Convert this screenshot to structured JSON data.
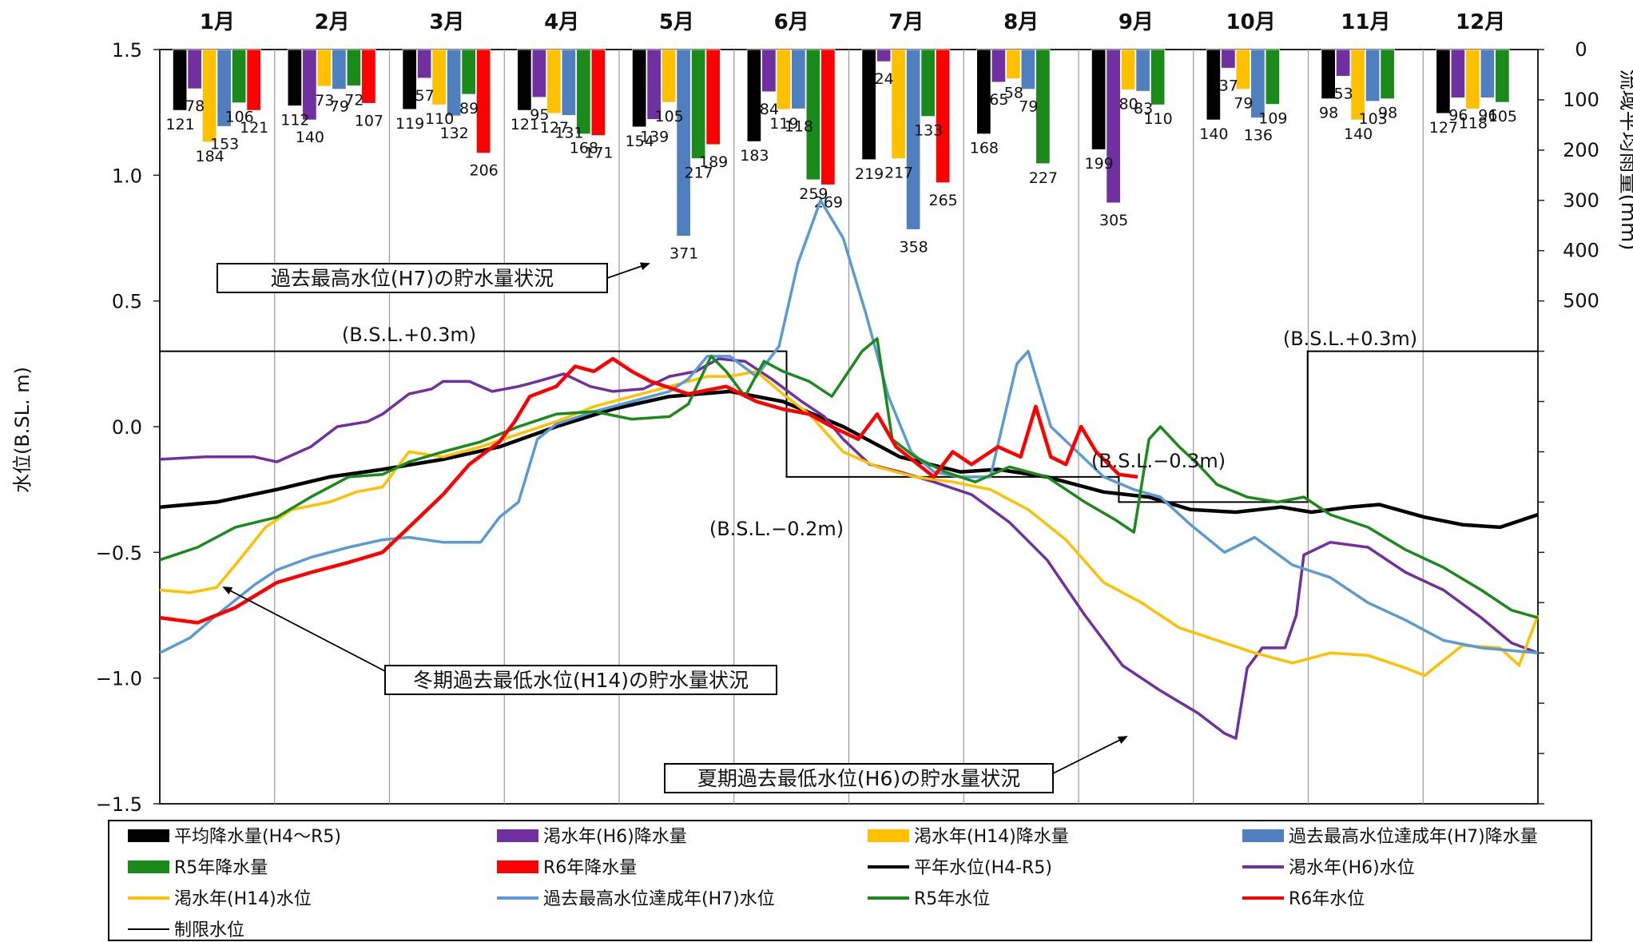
{
  "chart_data": {
    "type": "bar+line",
    "months": [
      "1月",
      "2月",
      "3月",
      "4月",
      "5月",
      "6月",
      "7月",
      "8月",
      "9月",
      "10月",
      "11月",
      "12月"
    ],
    "left_axis": {
      "label": "水位(B.SL. m)",
      "range": [
        -1.5,
        1.5
      ],
      "ticks": [
        "1.5",
        "1.0",
        "0.5",
        "0.0",
        "−0.5",
        "−1.0",
        "−1.5"
      ]
    },
    "right_axis": {
      "label": "流域平均雨量(mm)",
      "range": [
        0,
        1500
      ],
      "inverted": true,
      "ticks": [
        "0",
        "100",
        "200",
        "300",
        "400",
        "500"
      ]
    },
    "grid": "vertical month lines",
    "bar_series": [
      {
        "name": "平均降水量(H4〜R5)",
        "color": "#000000",
        "values": [
          121,
          112,
          119,
          121,
          154,
          183,
          219,
          168,
          199,
          140,
          98,
          127
        ]
      },
      {
        "name": "渇水年(H6)降水量",
        "color": "#7030a0",
        "values": [
          78,
          140,
          57,
          95,
          139,
          84,
          24,
          65,
          305,
          37,
          53,
          96
        ]
      },
      {
        "name": "渇水年(H14)降水量",
        "color": "#ffc000",
        "values": [
          184,
          73,
          110,
          127,
          105,
          119,
          217,
          58,
          80,
          79,
          140,
          118
        ]
      },
      {
        "name": "過去最高水位達成年(H7)降水量",
        "color": "#4f7fbf",
        "values": [
          153,
          79,
          132,
          131,
          371,
          118,
          358,
          79,
          83,
          136,
          103,
          96
        ]
      },
      {
        "name": "R5年降水量",
        "color": "#1a8a1a",
        "values": [
          106,
          72,
          89,
          168,
          217,
          259,
          133,
          227,
          110,
          109,
          98,
          105
        ]
      },
      {
        "name": "R6年降水量",
        "color": "#ff0000",
        "values": [
          121,
          107,
          206,
          171,
          189,
          269,
          265,
          null,
          null,
          null,
          null,
          null
        ]
      }
    ],
    "bar_label_positions": [
      [
        0,
        0,
        78,
        216,
        175,
        1181,
        "78"
      ],
      [
        0,
        0,
        0,
        0,
        0,
        0,
        ""
      ]
    ],
    "line_series": [
      {
        "name": "平年水位(H4-R5)",
        "color": "#000000",
        "width": 4.5,
        "points": [
          [
            0,
            -0.32
          ],
          [
            15,
            -0.3
          ],
          [
            31,
            -0.25
          ],
          [
            45,
            -0.2
          ],
          [
            59,
            -0.17
          ],
          [
            75,
            -0.13
          ],
          [
            90,
            -0.08
          ],
          [
            105,
            0.0
          ],
          [
            120,
            0.07
          ],
          [
            135,
            0.12
          ],
          [
            151,
            0.14
          ],
          [
            165,
            0.1
          ],
          [
            181,
            0.0
          ],
          [
            196,
            -0.12
          ],
          [
            212,
            -0.18
          ],
          [
            222,
            -0.17
          ],
          [
            235,
            -0.2
          ],
          [
            250,
            -0.26
          ],
          [
            262,
            -0.28
          ],
          [
            273,
            -0.33
          ],
          [
            285,
            -0.34
          ],
          [
            297,
            -0.32
          ],
          [
            305,
            -0.34
          ],
          [
            315,
            -0.32
          ],
          [
            323,
            -0.31
          ],
          [
            335,
            -0.36
          ],
          [
            345,
            -0.39
          ],
          [
            355,
            -0.4
          ],
          [
            365,
            -0.35
          ]
        ]
      },
      {
        "name": "渇水年(H6)水位",
        "color": "#7030a0",
        "width": 3.5,
        "points": [
          [
            0,
            -0.13
          ],
          [
            12,
            -0.12
          ],
          [
            25,
            -0.12
          ],
          [
            31,
            -0.14
          ],
          [
            40,
            -0.08
          ],
          [
            47,
            0.0
          ],
          [
            55,
            0.02
          ],
          [
            59,
            0.05
          ],
          [
            66,
            0.13
          ],
          [
            72,
            0.15
          ],
          [
            75,
            0.18
          ],
          [
            82,
            0.18
          ],
          [
            88,
            0.14
          ],
          [
            95,
            0.16
          ],
          [
            100,
            0.18
          ],
          [
            107,
            0.21
          ],
          [
            114,
            0.16
          ],
          [
            120,
            0.14
          ],
          [
            128,
            0.15
          ],
          [
            135,
            0.2
          ],
          [
            142,
            0.22
          ],
          [
            148,
            0.27
          ],
          [
            155,
            0.26
          ],
          [
            162,
            0.19
          ],
          [
            170,
            0.1
          ],
          [
            176,
            0.04
          ],
          [
            181,
            -0.05
          ],
          [
            188,
            -0.15
          ],
          [
            196,
            -0.18
          ],
          [
            205,
            -0.22
          ],
          [
            215,
            -0.27
          ],
          [
            225,
            -0.38
          ],
          [
            235,
            -0.53
          ],
          [
            245,
            -0.75
          ],
          [
            255,
            -0.95
          ],
          [
            265,
            -1.05
          ],
          [
            275,
            -1.14
          ],
          [
            282,
            -1.22
          ],
          [
            285,
            -1.24
          ],
          [
            288,
            -0.96
          ],
          [
            292,
            -0.88
          ],
          [
            298,
            -0.88
          ],
          [
            301,
            -0.75
          ],
          [
            303,
            -0.51
          ],
          [
            310,
            -0.46
          ],
          [
            320,
            -0.48
          ],
          [
            330,
            -0.58
          ],
          [
            340,
            -0.65
          ],
          [
            350,
            -0.76
          ],
          [
            358,
            -0.86
          ],
          [
            365,
            -0.9
          ]
        ]
      },
      {
        "name": "渇水年(H14)水位",
        "color": "#ffc000",
        "width": 3.5,
        "points": [
          [
            0,
            -0.65
          ],
          [
            8,
            -0.66
          ],
          [
            15,
            -0.64
          ],
          [
            20,
            -0.55
          ],
          [
            28,
            -0.4
          ],
          [
            35,
            -0.33
          ],
          [
            45,
            -0.3
          ],
          [
            52,
            -0.26
          ],
          [
            59,
            -0.24
          ],
          [
            66,
            -0.1
          ],
          [
            75,
            -0.12
          ],
          [
            85,
            -0.08
          ],
          [
            95,
            -0.03
          ],
          [
            105,
            0.02
          ],
          [
            115,
            0.08
          ],
          [
            125,
            0.12
          ],
          [
            135,
            0.16
          ],
          [
            145,
            0.2
          ],
          [
            151,
            0.2
          ],
          [
            158,
            0.22
          ],
          [
            165,
            0.13
          ],
          [
            172,
            0.05
          ],
          [
            181,
            -0.1
          ],
          [
            190,
            -0.16
          ],
          [
            200,
            -0.2
          ],
          [
            210,
            -0.22
          ],
          [
            220,
            -0.25
          ],
          [
            230,
            -0.33
          ],
          [
            240,
            -0.45
          ],
          [
            250,
            -0.62
          ],
          [
            260,
            -0.7
          ],
          [
            270,
            -0.8
          ],
          [
            280,
            -0.85
          ],
          [
            290,
            -0.9
          ],
          [
            300,
            -0.94
          ],
          [
            310,
            -0.9
          ],
          [
            320,
            -0.91
          ],
          [
            330,
            -0.96
          ],
          [
            335,
            -0.99
          ],
          [
            345,
            -0.87
          ],
          [
            355,
            -0.88
          ],
          [
            360,
            -0.95
          ],
          [
            365,
            -0.75
          ]
        ]
      },
      {
        "name": "過去最高水位達成年(H7)水位",
        "color": "#5b9bd5",
        "width": 3.5,
        "points": [
          [
            0,
            -0.9
          ],
          [
            8,
            -0.84
          ],
          [
            15,
            -0.75
          ],
          [
            25,
            -0.63
          ],
          [
            31,
            -0.57
          ],
          [
            40,
            -0.52
          ],
          [
            50,
            -0.48
          ],
          [
            59,
            -0.45
          ],
          [
            66,
            -0.44
          ],
          [
            75,
            -0.46
          ],
          [
            85,
            -0.46
          ],
          [
            90,
            -0.36
          ],
          [
            95,
            -0.3
          ],
          [
            100,
            -0.05
          ],
          [
            105,
            0.01
          ],
          [
            115,
            0.06
          ],
          [
            125,
            0.1
          ],
          [
            135,
            0.14
          ],
          [
            140,
            0.19
          ],
          [
            145,
            0.28
          ],
          [
            151,
            0.28
          ],
          [
            158,
            0.2
          ],
          [
            164,
            0.32
          ],
          [
            169,
            0.65
          ],
          [
            175,
            0.9
          ],
          [
            181,
            0.75
          ],
          [
            187,
            0.45
          ],
          [
            193,
            0.12
          ],
          [
            199,
            -0.1
          ],
          [
            205,
            -0.18
          ],
          [
            212,
            -0.2
          ],
          [
            220,
            -0.2
          ],
          [
            227,
            0.25
          ],
          [
            230,
            0.3
          ],
          [
            236,
            0.0
          ],
          [
            243,
            -0.1
          ],
          [
            250,
            -0.2
          ],
          [
            258,
            -0.25
          ],
          [
            265,
            -0.28
          ],
          [
            273,
            -0.39
          ],
          [
            282,
            -0.5
          ],
          [
            290,
            -0.44
          ],
          [
            300,
            -0.55
          ],
          [
            310,
            -0.6
          ],
          [
            320,
            -0.7
          ],
          [
            330,
            -0.77
          ],
          [
            340,
            -0.85
          ],
          [
            350,
            -0.88
          ],
          [
            365,
            -0.9
          ]
        ]
      },
      {
        "name": "R5年水位",
        "color": "#1a8a1a",
        "width": 3.5,
        "points": [
          [
            0,
            -0.53
          ],
          [
            10,
            -0.48
          ],
          [
            20,
            -0.4
          ],
          [
            31,
            -0.36
          ],
          [
            40,
            -0.28
          ],
          [
            50,
            -0.2
          ],
          [
            59,
            -0.19
          ],
          [
            66,
            -0.14
          ],
          [
            75,
            -0.1
          ],
          [
            85,
            -0.06
          ],
          [
            95,
            0.0
          ],
          [
            105,
            0.05
          ],
          [
            115,
            0.06
          ],
          [
            125,
            0.03
          ],
          [
            135,
            0.04
          ],
          [
            140,
            0.09
          ],
          [
            146,
            0.28
          ],
          [
            150,
            0.22
          ],
          [
            155,
            0.12
          ],
          [
            160,
            0.26
          ],
          [
            165,
            0.22
          ],
          [
            172,
            0.18
          ],
          [
            178,
            0.12
          ],
          [
            186,
            0.3
          ],
          [
            190,
            0.35
          ],
          [
            194,
            -0.05
          ],
          [
            200,
            -0.12
          ],
          [
            208,
            -0.18
          ],
          [
            216,
            -0.22
          ],
          [
            225,
            -0.16
          ],
          [
            235,
            -0.2
          ],
          [
            245,
            -0.3
          ],
          [
            253,
            -0.37
          ],
          [
            258,
            -0.42
          ],
          [
            262,
            -0.05
          ],
          [
            265,
            0.0
          ],
          [
            270,
            -0.08
          ],
          [
            275,
            -0.15
          ],
          [
            280,
            -0.23
          ],
          [
            288,
            -0.28
          ],
          [
            296,
            -0.3
          ],
          [
            303,
            -0.28
          ],
          [
            310,
            -0.35
          ],
          [
            320,
            -0.4
          ],
          [
            330,
            -0.49
          ],
          [
            340,
            -0.56
          ],
          [
            350,
            -0.65
          ],
          [
            358,
            -0.73
          ],
          [
            365,
            -0.76
          ]
        ]
      },
      {
        "name": "R6年水位",
        "color": "#ff0000",
        "width": 4.5,
        "points": [
          [
            0,
            -0.76
          ],
          [
            10,
            -0.78
          ],
          [
            20,
            -0.72
          ],
          [
            31,
            -0.62
          ],
          [
            40,
            -0.58
          ],
          [
            50,
            -0.54
          ],
          [
            59,
            -0.5
          ],
          [
            66,
            -0.4
          ],
          [
            75,
            -0.27
          ],
          [
            82,
            -0.15
          ],
          [
            90,
            -0.06
          ],
          [
            94,
            0.02
          ],
          [
            98,
            0.12
          ],
          [
            105,
            0.16
          ],
          [
            110,
            0.24
          ],
          [
            115,
            0.22
          ],
          [
            120,
            0.27
          ],
          [
            125,
            0.22
          ],
          [
            130,
            0.18
          ],
          [
            140,
            0.13
          ],
          [
            150,
            0.16
          ],
          [
            158,
            0.1
          ],
          [
            165,
            0.07
          ],
          [
            172,
            0.05
          ],
          [
            178,
            0.0
          ],
          [
            185,
            -0.05
          ],
          [
            190,
            0.05
          ],
          [
            195,
            -0.08
          ],
          [
            200,
            -0.14
          ],
          [
            205,
            -0.2
          ],
          [
            210,
            -0.1
          ],
          [
            215,
            -0.15
          ],
          [
            222,
            -0.08
          ],
          [
            228,
            -0.12
          ],
          [
            232,
            0.08
          ],
          [
            236,
            -0.12
          ],
          [
            240,
            -0.15
          ],
          [
            244,
            0.0
          ],
          [
            248,
            -0.1
          ],
          [
            254,
            -0.19
          ],
          [
            259,
            -0.2
          ]
        ]
      }
    ],
    "limit_level": {
      "name": "制限水位",
      "color": "#000000",
      "segments": [
        [
          0,
          0.3
        ],
        [
          166,
          0.3
        ],
        [
          166,
          -0.2
        ],
        [
          254,
          -0.2
        ],
        [
          254,
          -0.3
        ],
        [
          304,
          -0.3
        ],
        [
          304,
          0.3
        ],
        [
          365,
          0.3
        ]
      ]
    },
    "annotations": [
      {
        "text": "(B.S.L.+0.3m)"
      },
      {
        "text": "(B.S.L.+0.3m)"
      },
      {
        "text": "(B.S.L.−0.2m)"
      },
      {
        "text": "(B.S.L.−0.3m)"
      }
    ],
    "callouts": [
      {
        "text": "過去最高水位(H7)の貯水量状況"
      },
      {
        "text": "冬期過去最低水位(H14)の貯水量状況"
      },
      {
        "text": "夏期過去最低水位(H6)の貯水量状況"
      }
    ],
    "legend_placement": "bottom"
  }
}
